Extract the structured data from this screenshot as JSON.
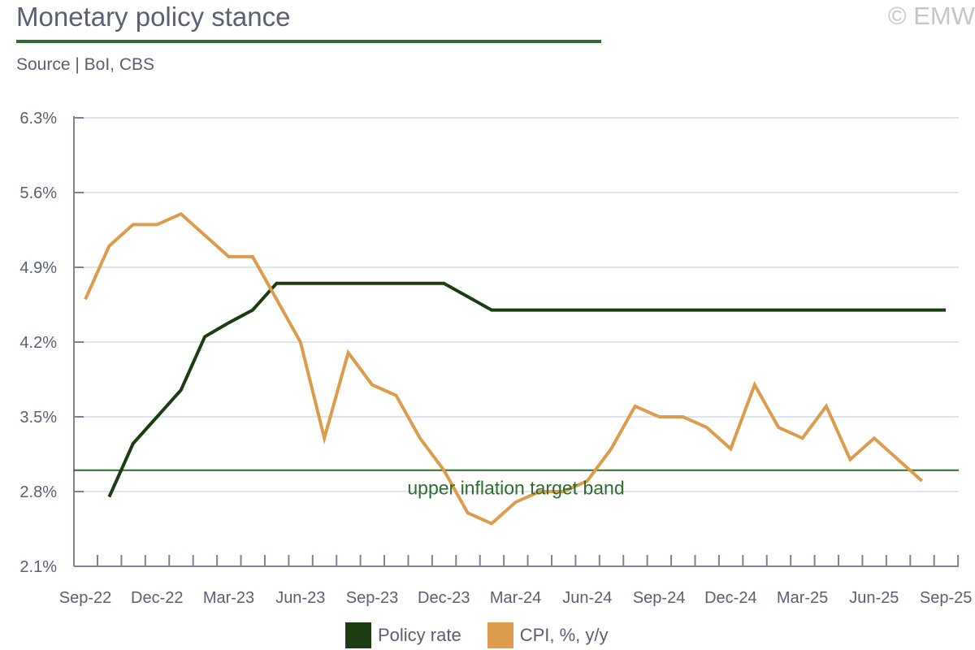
{
  "header": {
    "title": "Monetary policy stance",
    "copyright": "© EMW",
    "source": "Source | BoI, CBS"
  },
  "chart_data": {
    "type": "line",
    "title": "Monetary policy stance",
    "ylim": [
      2.1,
      6.3
    ],
    "yticks": [
      "2.1%",
      "2.8%",
      "3.5%",
      "4.2%",
      "4.9%",
      "5.6%",
      "6.3%"
    ],
    "ytick_values": [
      2.1,
      2.8,
      3.5,
      4.2,
      4.9,
      5.6,
      6.3
    ],
    "xtick_labels": [
      "Sep-22",
      "Dec-22",
      "Mar-23",
      "Jun-23",
      "Sep-23",
      "Dec-23",
      "Mar-24",
      "Jun-24",
      "Sep-24",
      "Dec-24",
      "Mar-25",
      "Jun-25",
      "Sep-25"
    ],
    "x_start": "Sep-22",
    "n_months": 37,
    "reference_line": {
      "value": 3.0,
      "label": "upper inflation target band",
      "color": "#2e6b2e"
    },
    "series": [
      {
        "name": "Policy rate",
        "color": "#1c3d12",
        "start_index": 1,
        "values": [
          2.75,
          3.25,
          3.5,
          3.75,
          4.25,
          4.38,
          4.5,
          4.75,
          4.75,
          4.75,
          4.75,
          4.75,
          4.75,
          4.75,
          4.75,
          4.625,
          4.5,
          4.5,
          4.5,
          4.5,
          4.5,
          4.5,
          4.5,
          4.5,
          4.5,
          4.5,
          4.5,
          4.5,
          4.5,
          4.5,
          4.5,
          4.5,
          4.5,
          4.5,
          4.5,
          4.5
        ]
      },
      {
        "name": "CPI, %, y/y",
        "color": "#dd9c4c",
        "start_index": 0,
        "values": [
          4.6,
          5.1,
          5.3,
          5.3,
          5.4,
          5.2,
          5.0,
          5.0,
          4.6,
          4.2,
          3.3,
          4.1,
          3.8,
          3.7,
          3.3,
          3.0,
          2.6,
          2.5,
          2.7,
          2.8,
          2.8,
          2.9,
          3.2,
          3.6,
          3.5,
          3.5,
          3.4,
          3.2,
          3.8,
          3.4,
          3.3,
          3.6,
          3.1,
          3.3,
          3.1,
          2.9
        ]
      }
    ],
    "grid": true,
    "legend": "bottom"
  }
}
